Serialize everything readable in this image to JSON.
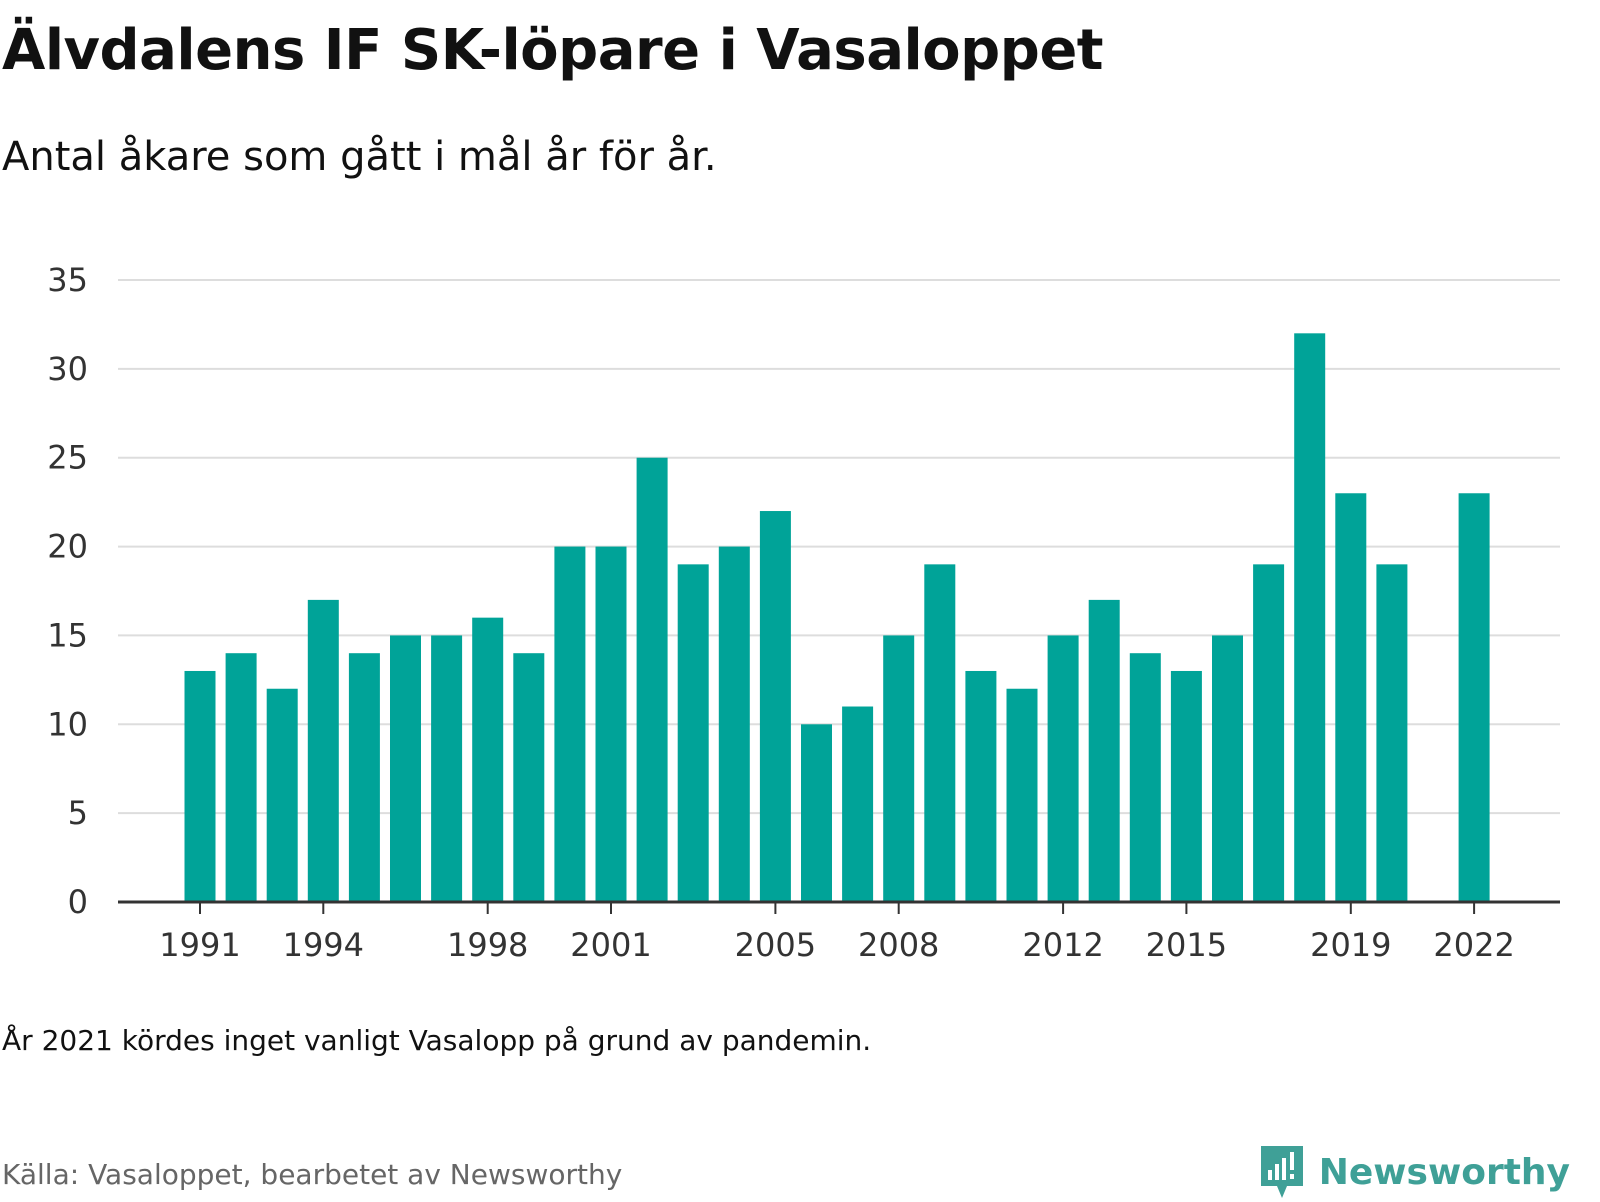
{
  "header": {
    "title": "Älvdalens IF SK-löpare i Vasaloppet",
    "subtitle": "Antal åkare som gått i mål år för år."
  },
  "footer": {
    "note": "År 2021 kördes inget vanligt Vasalopp på grund av pandemin.",
    "source": "Källa: Vasaloppet, bearbetet av Newsworthy",
    "brand": "Newsworthy"
  },
  "colors": {
    "bar": "#00a398",
    "grid": "#dddddd",
    "axis": "#333333",
    "brand": "#3fa097"
  },
  "chart_data": {
    "type": "bar",
    "categories": [
      1991,
      1992,
      1993,
      1994,
      1995,
      1996,
      1997,
      1998,
      1999,
      2000,
      2001,
      2002,
      2003,
      2004,
      2005,
      2006,
      2007,
      2008,
      2009,
      2010,
      2011,
      2012,
      2013,
      2014,
      2015,
      2016,
      2017,
      2018,
      2019,
      2020,
      2021,
      2022
    ],
    "values": [
      13,
      14,
      12,
      17,
      14,
      15,
      15,
      16,
      14,
      20,
      20,
      25,
      19,
      20,
      22,
      10,
      11,
      15,
      19,
      13,
      12,
      15,
      17,
      14,
      13,
      15,
      19,
      32,
      23,
      19,
      null,
      23
    ],
    "x_tick_labels": [
      "1991",
      "1994",
      "1998",
      "2001",
      "2005",
      "2008",
      "2012",
      "2015",
      "2019",
      "2022"
    ],
    "y_ticks": [
      0,
      5,
      10,
      15,
      20,
      25,
      30,
      35
    ],
    "ylim": [
      0,
      35
    ],
    "grid": true,
    "legend": "none"
  }
}
